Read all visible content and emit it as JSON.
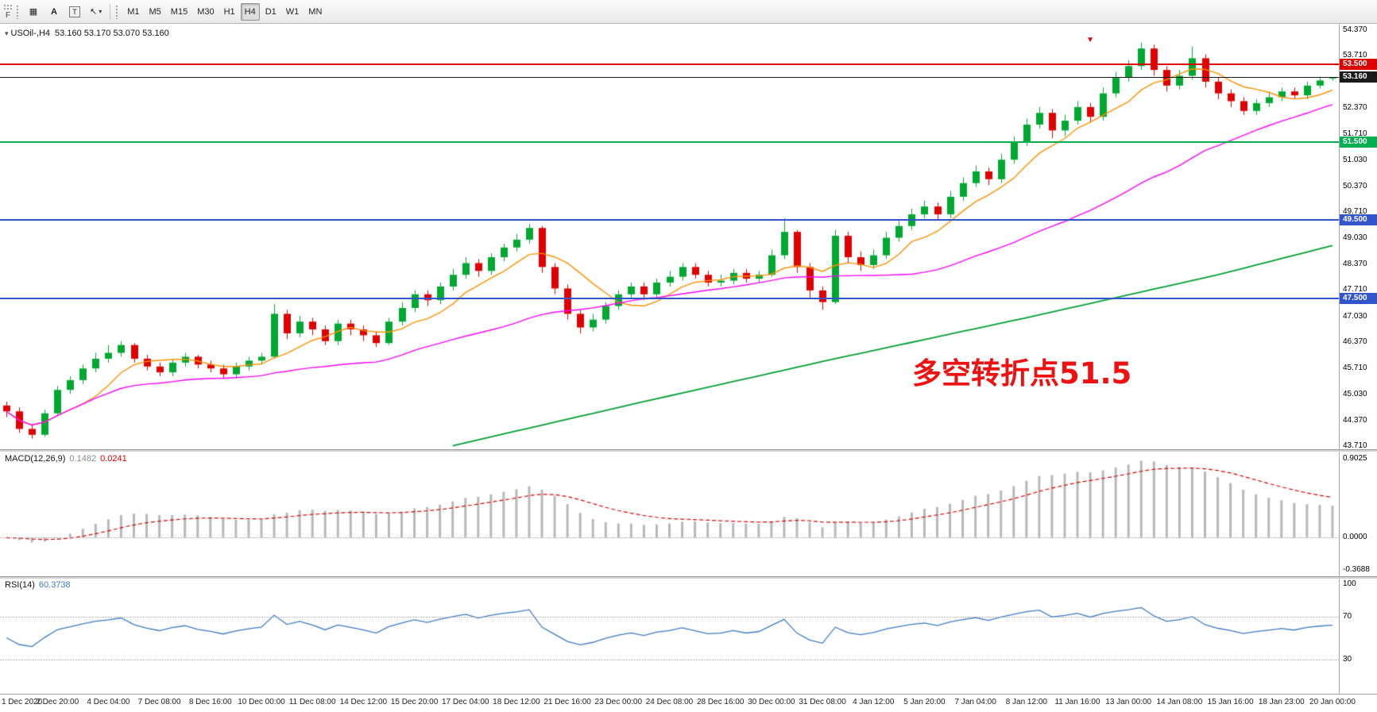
{
  "toolbar": {
    "left_tab": "F",
    "tools": {
      "grid_icon": "▦",
      "text_a": "A",
      "text_t": "T",
      "pointer_icon": "↖",
      "caret_icon": "▾"
    },
    "timeframes": [
      "M1",
      "M5",
      "M15",
      "M30",
      "H1",
      "H4",
      "D1",
      "W1",
      "MN"
    ],
    "active_timeframe": "H4"
  },
  "chart": {
    "title_marker": "▾",
    "title": "USOil-,H4",
    "ohlc_text": "53.160 53.170 53.070 53.160",
    "annotation": {
      "text": "多空转折点51.5",
      "color": "#ee1111"
    },
    "y_axis_labels": [
      "54.370",
      "53.710",
      "53.070",
      "52.370",
      "51.710",
      "51.030",
      "50.370",
      "49.710",
      "49.030",
      "48.370",
      "47.710",
      "47.030",
      "46.370",
      "45.710",
      "45.030",
      "44.370",
      "43.710"
    ]
  },
  "macd_panel": {
    "label": "MACD(12,26,9)",
    "main_value": "0.1482",
    "signal_value": "0.0241",
    "scale_labels": [
      "0.9025",
      "0.0000",
      "-0.3688"
    ],
    "histogram_color": "#b8b8b8",
    "signal_color": "#dd0000",
    "main_value_color": "#8a8a8a"
  },
  "rsi_panel": {
    "label": "RSI(14)",
    "value": "60.3738",
    "scale_labels": [
      "100",
      "70",
      "30"
    ],
    "level_lines": [
      70,
      30
    ],
    "line_color": "#3d7ac2"
  },
  "time_axis": {
    "label_every_n_bars": 4,
    "labels": [
      "1 Dec 2020",
      "2 Dec 20:00",
      "4 Dec 04:00",
      "7 Dec 08:00",
      "8 Dec 16:00",
      "10 Dec 00:00",
      "11 Dec 08:00",
      "14 Dec 12:00",
      "15 Dec 20:00",
      "17 Dec 04:00",
      "18 Dec 12:00",
      "21 Dec 16:00",
      "23 Dec 00:00",
      "24 Dec 08:00",
      "28 Dec 16:00",
      "30 Dec 00:00",
      "31 Dec 08:00",
      "4 Jan 12:00",
      "5 Jan 20:00",
      "7 Jan 04:00",
      "8 Jan 12:00",
      "11 Jan 16:00",
      "13 Jan 00:00",
      "14 Jan 08:00",
      "15 Jan 16:00",
      "18 Jan 23:00",
      "20 Jan 00:00"
    ]
  },
  "chart_data": {
    "type": "candlestick",
    "symbol": "USOil-",
    "timeframe": "H4",
    "y_range": [
      43.71,
      54.37
    ],
    "up_color": "#00a832",
    "down_color": "#e00000",
    "candles": [
      [
        44.75,
        44.85,
        44.45,
        44.6
      ],
      [
        44.6,
        44.7,
        44.05,
        44.15
      ],
      [
        44.15,
        44.25,
        43.9,
        44.0
      ],
      [
        44.0,
        44.65,
        43.95,
        44.55
      ],
      [
        44.55,
        45.25,
        44.5,
        45.15
      ],
      [
        45.15,
        45.5,
        45.05,
        45.4
      ],
      [
        45.4,
        45.8,
        45.3,
        45.7
      ],
      [
        45.7,
        46.1,
        45.6,
        45.95
      ],
      [
        45.95,
        46.3,
        45.85,
        46.1
      ],
      [
        46.1,
        46.4,
        46.0,
        46.3
      ],
      [
        46.3,
        46.35,
        45.85,
        45.95
      ],
      [
        45.95,
        46.05,
        45.65,
        45.75
      ],
      [
        45.75,
        45.85,
        45.5,
        45.6
      ],
      [
        45.6,
        45.95,
        45.5,
        45.85
      ],
      [
        45.85,
        46.1,
        45.75,
        46.0
      ],
      [
        46.0,
        46.05,
        45.7,
        45.8
      ],
      [
        45.8,
        45.9,
        45.6,
        45.7
      ],
      [
        45.7,
        45.8,
        45.45,
        45.55
      ],
      [
        45.55,
        45.85,
        45.45,
        45.75
      ],
      [
        45.75,
        46.0,
        45.65,
        45.9
      ],
      [
        45.9,
        46.1,
        45.8,
        46.0
      ],
      [
        46.0,
        47.35,
        45.95,
        47.1
      ],
      [
        47.1,
        47.2,
        46.45,
        46.6
      ],
      [
        46.6,
        47.05,
        46.5,
        46.9
      ],
      [
        46.9,
        47.0,
        46.55,
        46.7
      ],
      [
        46.7,
        46.8,
        46.3,
        46.4
      ],
      [
        46.4,
        46.95,
        46.3,
        46.85
      ],
      [
        46.85,
        46.95,
        46.55,
        46.7
      ],
      [
        46.7,
        46.8,
        46.4,
        46.55
      ],
      [
        46.55,
        46.65,
        46.25,
        46.35
      ],
      [
        46.35,
        47.0,
        46.3,
        46.9
      ],
      [
        46.9,
        47.4,
        46.8,
        47.25
      ],
      [
        47.25,
        47.7,
        47.15,
        47.6
      ],
      [
        47.6,
        47.7,
        47.3,
        47.45
      ],
      [
        47.45,
        47.9,
        47.35,
        47.8
      ],
      [
        47.8,
        48.25,
        47.7,
        48.1
      ],
      [
        48.1,
        48.55,
        48.0,
        48.4
      ],
      [
        48.4,
        48.5,
        48.05,
        48.2
      ],
      [
        48.2,
        48.65,
        48.1,
        48.55
      ],
      [
        48.55,
        48.9,
        48.45,
        48.8
      ],
      [
        48.8,
        49.15,
        48.7,
        49.0
      ],
      [
        49.0,
        49.4,
        48.9,
        49.3
      ],
      [
        49.3,
        49.35,
        48.15,
        48.3
      ],
      [
        48.3,
        48.4,
        47.6,
        47.75
      ],
      [
        47.75,
        47.85,
        46.95,
        47.1
      ],
      [
        47.1,
        47.2,
        46.6,
        46.75
      ],
      [
        46.75,
        47.1,
        46.65,
        46.95
      ],
      [
        46.95,
        47.4,
        46.85,
        47.3
      ],
      [
        47.3,
        47.7,
        47.2,
        47.6
      ],
      [
        47.6,
        47.9,
        47.5,
        47.8
      ],
      [
        47.8,
        47.9,
        47.45,
        47.6
      ],
      [
        47.6,
        48.0,
        47.5,
        47.9
      ],
      [
        47.9,
        48.2,
        47.8,
        48.05
      ],
      [
        48.05,
        48.4,
        47.95,
        48.3
      ],
      [
        48.3,
        48.4,
        48.0,
        48.1
      ],
      [
        48.1,
        48.2,
        47.8,
        47.9
      ],
      [
        47.9,
        48.1,
        47.8,
        47.95
      ],
      [
        47.95,
        48.25,
        47.85,
        48.15
      ],
      [
        48.15,
        48.25,
        47.9,
        48.0
      ],
      [
        48.0,
        48.2,
        47.9,
        48.1
      ],
      [
        48.1,
        48.75,
        48.05,
        48.6
      ],
      [
        48.6,
        49.55,
        48.5,
        49.2
      ],
      [
        49.2,
        49.25,
        48.15,
        48.3
      ],
      [
        48.3,
        48.4,
        47.5,
        47.7
      ],
      [
        47.7,
        47.8,
        47.2,
        47.4
      ],
      [
        47.4,
        49.25,
        47.35,
        49.1
      ],
      [
        49.1,
        49.2,
        48.4,
        48.55
      ],
      [
        48.55,
        48.7,
        48.2,
        48.35
      ],
      [
        48.35,
        48.75,
        48.25,
        48.6
      ],
      [
        48.6,
        49.2,
        48.5,
        49.05
      ],
      [
        49.05,
        49.5,
        48.95,
        49.35
      ],
      [
        49.35,
        49.8,
        49.25,
        49.65
      ],
      [
        49.65,
        50.0,
        49.55,
        49.85
      ],
      [
        49.85,
        49.95,
        49.5,
        49.65
      ],
      [
        49.65,
        50.25,
        49.55,
        50.1
      ],
      [
        50.1,
        50.6,
        50.0,
        50.45
      ],
      [
        50.45,
        50.9,
        50.35,
        50.75
      ],
      [
        50.75,
        50.85,
        50.4,
        50.55
      ],
      [
        50.55,
        51.2,
        50.45,
        51.05
      ],
      [
        51.05,
        51.65,
        50.95,
        51.5
      ],
      [
        51.5,
        52.1,
        51.4,
        51.95
      ],
      [
        51.95,
        52.4,
        51.85,
        52.25
      ],
      [
        52.25,
        52.35,
        51.6,
        51.8
      ],
      [
        51.8,
        52.2,
        51.65,
        52.05
      ],
      [
        52.05,
        52.55,
        51.95,
        52.4
      ],
      [
        52.4,
        52.5,
        52.0,
        52.15
      ],
      [
        52.15,
        52.9,
        52.05,
        52.75
      ],
      [
        52.75,
        53.3,
        52.65,
        53.15
      ],
      [
        53.15,
        53.6,
        53.05,
        53.45
      ],
      [
        53.45,
        54.05,
        53.35,
        53.9
      ],
      [
        53.9,
        54.0,
        53.2,
        53.35
      ],
      [
        53.35,
        53.45,
        52.8,
        52.95
      ],
      [
        52.95,
        53.35,
        52.85,
        53.2
      ],
      [
        53.2,
        53.95,
        53.1,
        53.65
      ],
      [
        53.65,
        53.75,
        52.9,
        53.05
      ],
      [
        53.05,
        53.15,
        52.6,
        52.75
      ],
      [
        52.75,
        52.85,
        52.4,
        52.55
      ],
      [
        52.55,
        52.65,
        52.2,
        52.3
      ],
      [
        52.3,
        52.6,
        52.2,
        52.5
      ],
      [
        52.5,
        52.8,
        52.4,
        52.65
      ],
      [
        52.65,
        52.9,
        52.55,
        52.8
      ],
      [
        52.8,
        52.9,
        52.6,
        52.7
      ],
      [
        52.7,
        53.05,
        52.6,
        52.95
      ],
      [
        52.95,
        53.18,
        52.88,
        53.08
      ],
      [
        53.16,
        53.17,
        53.07,
        53.16
      ]
    ],
    "levels": [
      {
        "price": 53.5,
        "label": "53.500",
        "color": "#dd0000",
        "thickness": 2,
        "role": "resistance-53500"
      },
      {
        "price": 53.16,
        "label": "53.160",
        "color": "#1a1a1a",
        "thickness": 1,
        "role": "current-price"
      },
      {
        "price": 51.5,
        "label": "51.500",
        "color": "#00b050",
        "thickness": 2,
        "role": "pivot-51500"
      },
      {
        "price": 49.5,
        "label": "49.500",
        "color": "#3355cc",
        "thickness": 2,
        "role": "support-49500"
      },
      {
        "price": 47.5,
        "label": "47.500",
        "color": "#3355cc",
        "thickness": 2,
        "role": "support-47500"
      }
    ],
    "moving_averages": [
      {
        "name": "ma-fast",
        "type": "sma",
        "period": 7,
        "color": "#ff9000"
      },
      {
        "name": "ma-mid",
        "type": "sma",
        "period": 30,
        "color": "#ff00ff"
      },
      {
        "name": "ma-slow",
        "type": "anchored",
        "color": "#00a032",
        "anchors": [
          [
            35,
            43.72
          ],
          [
            50,
            44.85
          ],
          [
            65,
            45.95
          ],
          [
            80,
            47.0
          ],
          [
            95,
            48.1
          ],
          [
            104,
            48.85
          ]
        ]
      }
    ],
    "markers": [
      {
        "bar": 85,
        "price": 53.95,
        "glyph": "▼",
        "color": "#dd0000"
      }
    ],
    "macd": {
      "fast": 12,
      "slow": 26,
      "signal": 9,
      "scale_max": 0.9025,
      "scale_min": -0.3688
    },
    "rsi": {
      "period": 14
    }
  }
}
